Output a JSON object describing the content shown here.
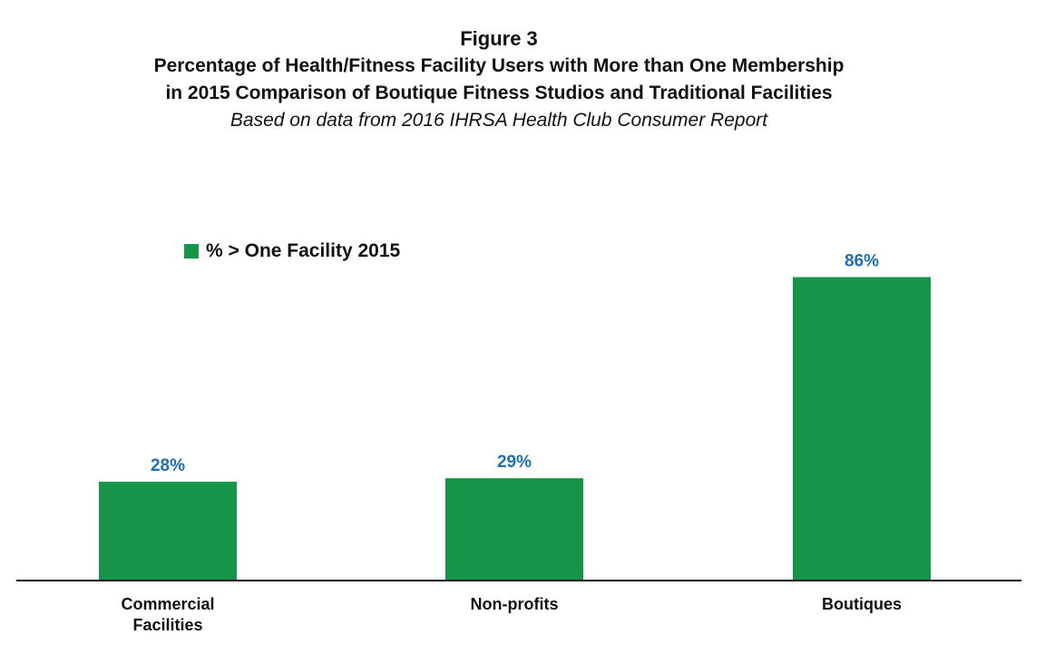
{
  "header": {
    "figure_label": "Figure 3",
    "title_line1": "Percentage of Health/Fitness Facility Users with More than One Membership",
    "title_line2": "in 2015 Comparison of Boutique Fitness Studios and Traditional Facilities",
    "subtitle": "Based on data from 2016 IHRSA Health Club Consumer Report"
  },
  "colors": {
    "bar": "#16944a",
    "value_label": "#1f6fad",
    "axis": "#111111"
  },
  "chart_data": {
    "type": "bar",
    "title": "Percentage of Health/Fitness Facility Users with More than One Membership in 2015 Comparison of Boutique Fitness Studios and Traditional Facilities",
    "subtitle": "Based on data from 2016 IHRSA Health Club Consumer Report",
    "categories": [
      [
        "Commercial",
        "Facilities"
      ],
      [
        "Non-profits"
      ],
      [
        "Boutiques"
      ]
    ],
    "series": [
      {
        "name": "% > One Facility 2015",
        "values": [
          28,
          29,
          86
        ],
        "labels": [
          "28%",
          "29%",
          "86%"
        ]
      }
    ],
    "ylim": [
      0,
      100
    ],
    "grid": false,
    "legend_position": "top-left"
  }
}
